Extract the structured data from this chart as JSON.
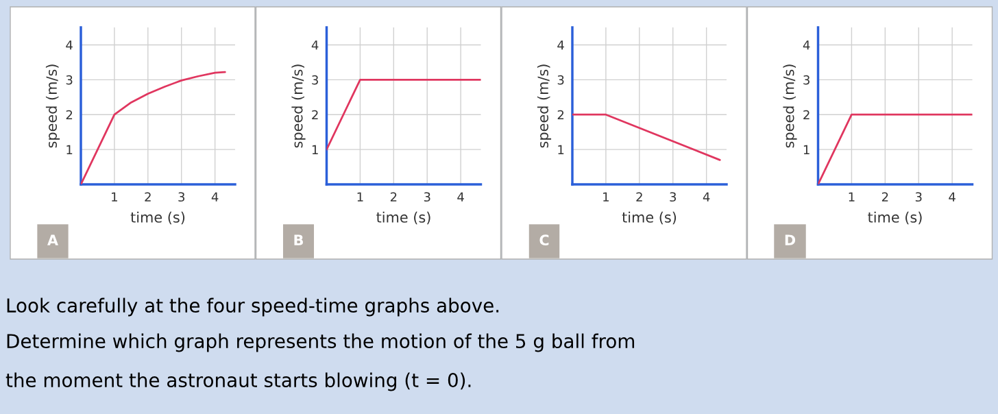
{
  "chart_data": [
    {
      "type": "line",
      "title": "A",
      "xlabel": "time (s)",
      "ylabel": "speed (m/s)",
      "x": [
        0,
        1,
        1.5,
        2,
        2.5,
        3,
        3.5,
        4,
        4.3
      ],
      "series": [
        {
          "color": "#e0365f",
          "values": [
            0,
            2,
            2.35,
            2.6,
            2.8,
            2.98,
            3.1,
            3.2,
            3.22
          ]
        }
      ],
      "xlim": [
        0,
        4.6
      ],
      "ylim": [
        0,
        4.5
      ],
      "xticks": [
        1,
        2,
        3,
        4
      ],
      "yticks": [
        1,
        2,
        3,
        4
      ],
      "grid": true,
      "marker": "none"
    },
    {
      "type": "line",
      "title": "B",
      "xlabel": "time (s)",
      "ylabel": "speed (m/s)",
      "x": [
        0,
        1,
        4.6
      ],
      "series": [
        {
          "color": "#e0365f",
          "values": [
            1,
            3,
            3
          ]
        }
      ],
      "xlim": [
        0,
        4.6
      ],
      "ylim": [
        0,
        4.5
      ],
      "xticks": [
        1,
        2,
        3,
        4
      ],
      "yticks": [
        1,
        2,
        3,
        4
      ],
      "grid": true,
      "marker": "none"
    },
    {
      "type": "line",
      "title": "C",
      "xlabel": "time (s)",
      "ylabel": "speed (m/s)",
      "x": [
        0,
        1,
        4.4
      ],
      "series": [
        {
          "color": "#e0365f",
          "values": [
            2,
            2,
            0.7
          ]
        }
      ],
      "xlim": [
        0,
        4.6
      ],
      "ylim": [
        0,
        4.5
      ],
      "xticks": [
        1,
        2,
        3,
        4
      ],
      "yticks": [
        1,
        2,
        3,
        4
      ],
      "grid": true,
      "marker": "none"
    },
    {
      "type": "line",
      "title": "D",
      "xlabel": "time (s)",
      "ylabel": "speed (m/s)",
      "x": [
        0,
        1,
        4.6
      ],
      "series": [
        {
          "color": "#e0365f",
          "values": [
            0,
            2,
            2
          ]
        }
      ],
      "xlim": [
        0,
        4.6
      ],
      "ylim": [
        0,
        4.5
      ],
      "xticks": [
        1,
        2,
        3,
        4
      ],
      "yticks": [
        1,
        2,
        3,
        4
      ],
      "grid": true,
      "marker": "none"
    },
    {
      "type": "other",
      "annotations": [
        "Look carefully at the four speed-time graphs above.",
        "Determine which graph represents the motion of the 5 g ball from",
        "the moment the astronaut starts blowing (t = 0)."
      ]
    }
  ]
}
